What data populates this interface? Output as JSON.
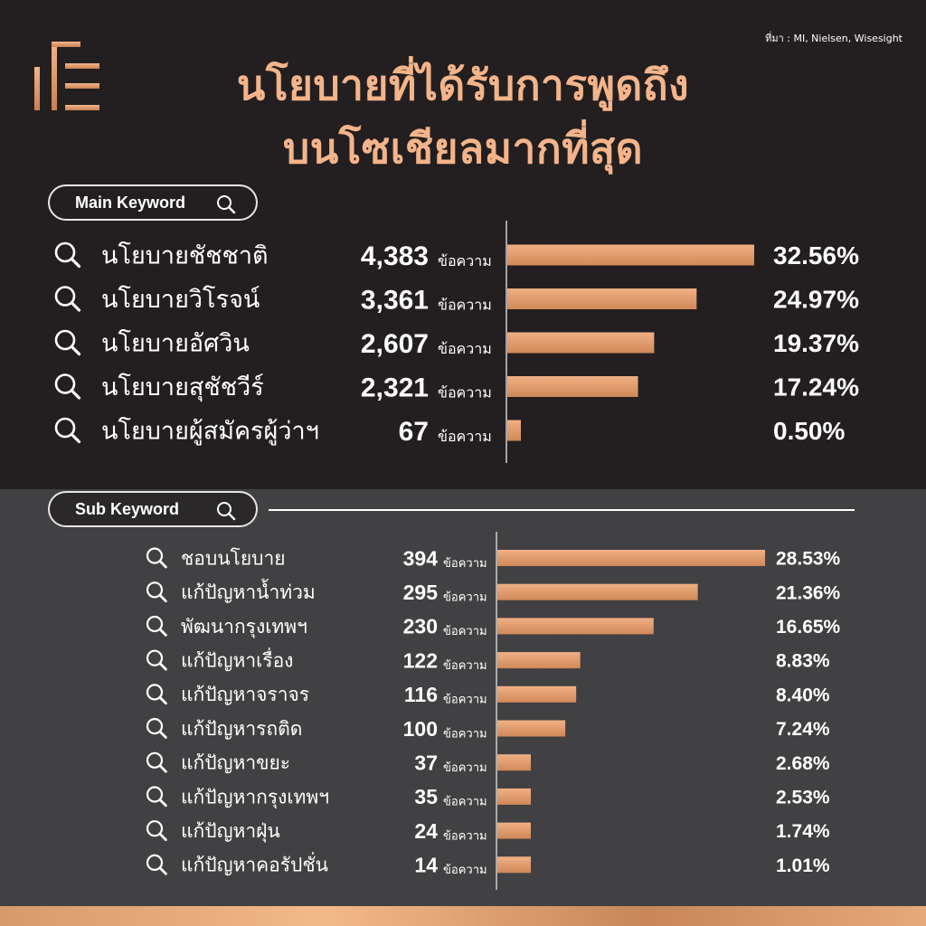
{
  "source": "ที่มา : MI, Nielsen, Wisesight",
  "title": {
    "line1": "นโยบายที่ได้รับการพูดถึง",
    "line2": "บนโซเชียลมากที่สุด"
  },
  "colors": {
    "accent": "#f4b48a",
    "bar_top": "#f0b084",
    "bar_bottom": "#d08858",
    "dark_bg": "#231f20",
    "gray_bg": "#414042"
  },
  "icons": {
    "search": "search-icon",
    "logo": "logo-icon"
  },
  "main_pill": {
    "label": "Main Keyword"
  },
  "sub_pill": {
    "label": "Sub Keyword"
  },
  "chart_data": [
    {
      "type": "bar",
      "title": "Main Keyword",
      "unit_label": "ข้อความ",
      "categories": [
        "นโยบายชัชชาติ",
        "นโยบายวิโรจน์",
        "นโยบายอัศวิน",
        "นโยบายสุชัชวีร์",
        "นโยบายผู้สมัครผู้ว่าฯ"
      ],
      "counts": [
        "4,383",
        "3,361",
        "2,607",
        "2,321",
        "67"
      ],
      "values": [
        4383,
        3361,
        2607,
        2321,
        67
      ],
      "percents": [
        "32.56%",
        "24.97%",
        "19.37%",
        "17.24%",
        "0.50%"
      ]
    },
    {
      "type": "bar",
      "title": "Sub Keyword",
      "unit_label": "ข้อความ",
      "categories": [
        "ชอบนโยบาย",
        "แก้ปัญหาน้ำท่วม",
        "พัฒนากรุงเทพฯ",
        "แก้ปัญหาเรื่อง",
        "แก้ปัญหาจราจร",
        "แก้ปัญหารถติด",
        "แก้ปัญหาขยะ",
        "แก้ปัญหากรุงเทพฯ",
        "แก้ปัญหาฝุ่น",
        "แก้ปัญหาคอรัปชั่น"
      ],
      "counts": [
        "394",
        "295",
        "230",
        "122",
        "116",
        "100",
        "37",
        "35",
        "24",
        "14"
      ],
      "values": [
        394,
        295,
        230,
        122,
        116,
        100,
        37,
        35,
        24,
        14
      ],
      "percents": [
        "28.53%",
        "21.36%",
        "16.65%",
        "8.83%",
        "8.40%",
        "7.24%",
        "2.68%",
        "2.53%",
        "1.74%",
        "1.01%"
      ]
    }
  ]
}
